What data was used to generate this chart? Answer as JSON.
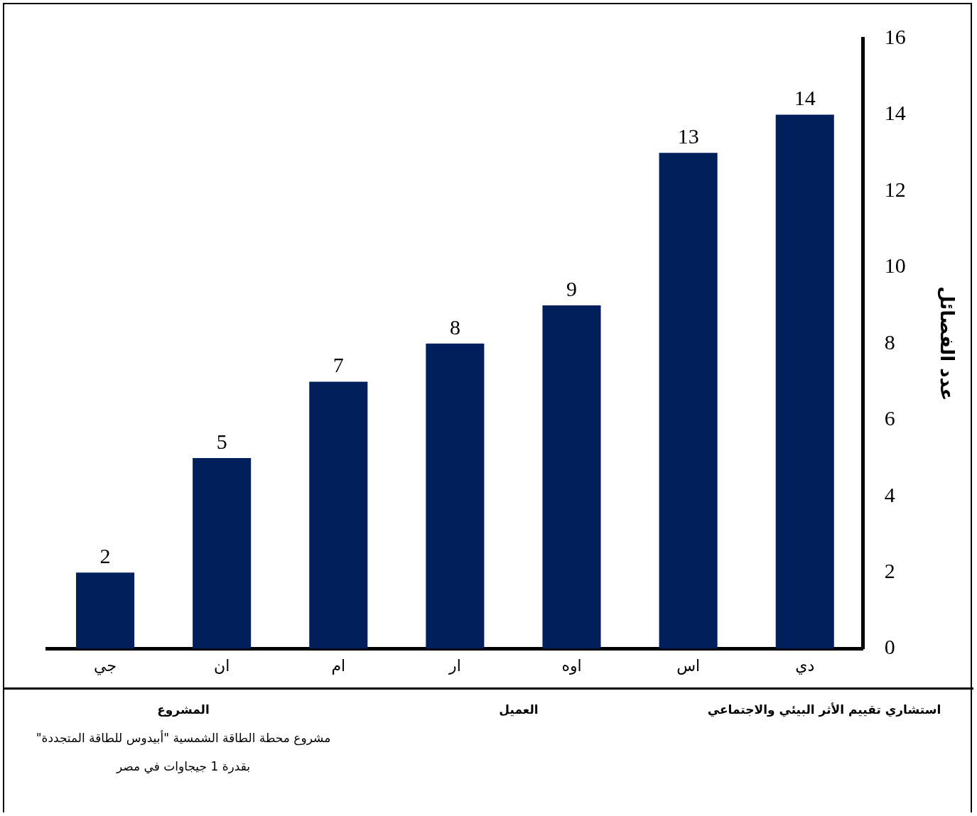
{
  "chart_data": {
    "type": "bar",
    "ylabel": "عدد الفصائل",
    "categories": [
      "جي",
      "ان",
      "ام",
      "ار",
      "اوه",
      "اس",
      "دي"
    ],
    "values": [
      2,
      5,
      7,
      8,
      9,
      13,
      14
    ],
    "color": "#001f5b",
    "ylim": [
      0,
      16
    ],
    "yticks": [
      0,
      2,
      4,
      6,
      8,
      10,
      12,
      14,
      16
    ],
    "grid": false,
    "data_labels": true,
    "annotations": [
      "استشاري تقييم الأثر البيئي والاجتماعي",
      "العميل",
      "المشروع",
      "مشروع محطة الطاقة الشمسية \"أبيدوس للطاقة المتجددة\"",
      "بقدرة 1 جيجاوات في مصر"
    ]
  }
}
